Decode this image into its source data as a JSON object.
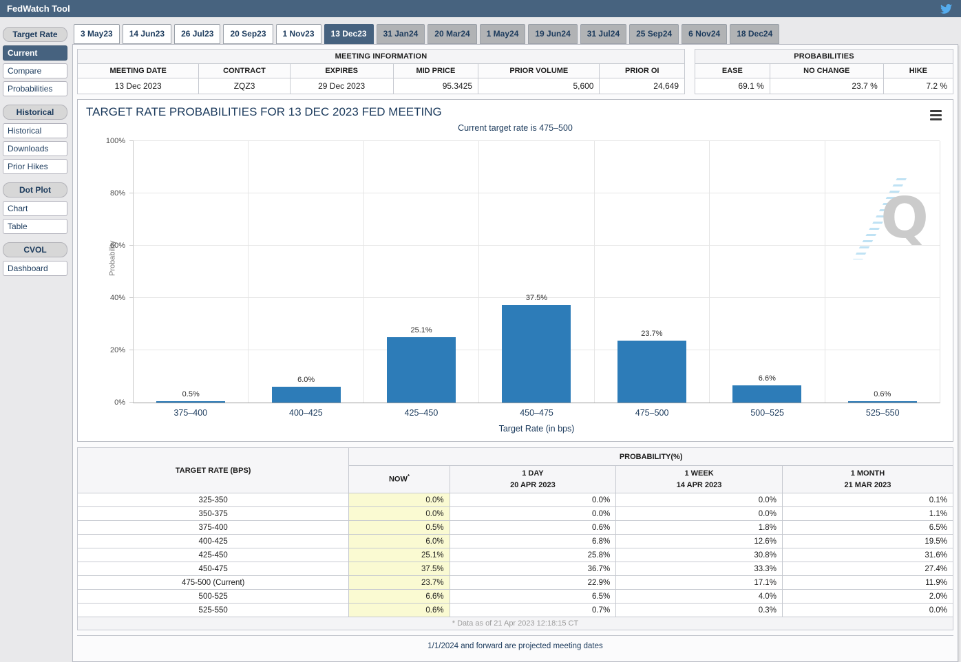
{
  "app": {
    "title": "FedWatch Tool"
  },
  "icons": {
    "twitter": "twitter-bird-icon",
    "menu": "hamburger-icon",
    "watermark_letter": "Q"
  },
  "colors": {
    "header": "#47637f",
    "selected": "#46627f",
    "bar": "#2d7cb8",
    "now_column": "#fafad2",
    "navy_text": "#1b3a5c",
    "twitter_blue": "#55acee"
  },
  "sidebar": {
    "sections": [
      {
        "header": "Target Rate",
        "items": [
          {
            "label": "Current",
            "selected": true
          },
          {
            "label": "Compare",
            "selected": false
          },
          {
            "label": "Probabilities",
            "selected": false
          }
        ]
      },
      {
        "header": "Historical",
        "items": [
          {
            "label": "Historical",
            "selected": false
          },
          {
            "label": "Downloads",
            "selected": false
          },
          {
            "label": "Prior Hikes",
            "selected": false
          }
        ]
      },
      {
        "header": "Dot Plot",
        "items": [
          {
            "label": "Chart",
            "selected": false
          },
          {
            "label": "Table",
            "selected": false
          }
        ]
      },
      {
        "header": "CVOL",
        "items": [
          {
            "label": "Dashboard",
            "selected": false
          }
        ]
      }
    ]
  },
  "tabs": [
    {
      "label": "3 May23",
      "state": "past"
    },
    {
      "label": "14 Jun23",
      "state": "past"
    },
    {
      "label": "26 Jul23",
      "state": "past"
    },
    {
      "label": "20 Sep23",
      "state": "past"
    },
    {
      "label": "1 Nov23",
      "state": "past"
    },
    {
      "label": "13 Dec23",
      "state": "selected"
    },
    {
      "label": "31 Jan24",
      "state": "future"
    },
    {
      "label": "20 Mar24",
      "state": "future"
    },
    {
      "label": "1 May24",
      "state": "future"
    },
    {
      "label": "19 Jun24",
      "state": "future"
    },
    {
      "label": "31 Jul24",
      "state": "future"
    },
    {
      "label": "25 Sep24",
      "state": "future"
    },
    {
      "label": "6 Nov24",
      "state": "future"
    },
    {
      "label": "18 Dec24",
      "state": "future"
    }
  ],
  "meeting_info": {
    "title": "MEETING INFORMATION",
    "columns": [
      "MEETING DATE",
      "CONTRACT",
      "EXPIRES",
      "MID PRICE",
      "PRIOR VOLUME",
      "PRIOR OI"
    ],
    "values": [
      "13 Dec 2023",
      "ZQZ3",
      "29 Dec 2023",
      "95.3425",
      "5,600",
      "24,649"
    ],
    "aligns": [
      "c",
      "c",
      "c",
      "r",
      "r",
      "r"
    ],
    "widths": [
      20,
      15,
      17,
      14,
      20,
      14
    ]
  },
  "probabilities_info": {
    "title": "PROBABILITIES",
    "columns": [
      "EASE",
      "NO CHANGE",
      "HIKE"
    ],
    "values": [
      "69.1 %",
      "23.7 %",
      "7.2 %"
    ],
    "aligns": [
      "r",
      "r",
      "r"
    ],
    "widths": [
      29,
      44,
      27
    ]
  },
  "chart": {
    "title": "TARGET RATE PROBABILITIES FOR 13 DEC 2023 FED MEETING",
    "subtitle": "Current target rate is 475–500"
  },
  "chart_data": {
    "type": "bar",
    "title": "TARGET RATE PROBABILITIES FOR 13 DEC 2023 FED MEETING",
    "subtitle": "Current target rate is 475–500",
    "categories": [
      "375–400",
      "400–425",
      "425–450",
      "450–475",
      "475–500",
      "500–525",
      "525–550"
    ],
    "values": [
      0.5,
      6.0,
      25.1,
      37.5,
      23.7,
      6.6,
      0.6
    ],
    "bar_labels": [
      "0.5%",
      "6.0%",
      "25.1%",
      "37.5%",
      "23.7%",
      "6.6%",
      "0.6%"
    ],
    "xlabel": "Target Rate (in bps)",
    "ylabel": "Probability",
    "ylim": [
      0,
      100
    ],
    "yticks": [
      0,
      20,
      40,
      60,
      80,
      100
    ],
    "ytick_labels": [
      "0%",
      "20%",
      "40%",
      "60%",
      "80%",
      "100%"
    ],
    "grid": true,
    "legend": false,
    "bar_color": "#2d7cb8"
  },
  "prob_table": {
    "col1_header": "TARGET RATE (BPS)",
    "group_header": "PROBABILITY(%)",
    "now_label": "NOW",
    "now_sup": "*",
    "period_headers": [
      {
        "line1": "1 DAY",
        "line2": "20 APR 2023"
      },
      {
        "line1": "1 WEEK",
        "line2": "14 APR 2023"
      },
      {
        "line1": "1 MONTH",
        "line2": "21 MAR 2023"
      }
    ],
    "rows": [
      [
        "325-350",
        "0.0%",
        "0.0%",
        "0.0%",
        "0.1%"
      ],
      [
        "350-375",
        "0.0%",
        "0.0%",
        "0.0%",
        "1.1%"
      ],
      [
        "375-400",
        "0.5%",
        "0.6%",
        "1.8%",
        "6.5%"
      ],
      [
        "400-425",
        "6.0%",
        "6.8%",
        "12.6%",
        "19.5%"
      ],
      [
        "425-450",
        "25.1%",
        "25.8%",
        "30.8%",
        "31.6%"
      ],
      [
        "450-475",
        "37.5%",
        "36.7%",
        "33.3%",
        "27.4%"
      ],
      [
        "475-500 (Current)",
        "23.7%",
        "22.9%",
        "17.1%",
        "11.9%"
      ],
      [
        "500-525",
        "6.6%",
        "6.5%",
        "4.0%",
        "2.0%"
      ],
      [
        "525-550",
        "0.6%",
        "0.7%",
        "0.3%",
        "0.0%"
      ]
    ],
    "footnote": "* Data as of 21 Apr 2023 12:18:15 CT",
    "widths": [
      31,
      11.5,
      19,
      19,
      19.5
    ]
  },
  "footer": {
    "note": "1/1/2024 and forward are projected meeting dates"
  }
}
